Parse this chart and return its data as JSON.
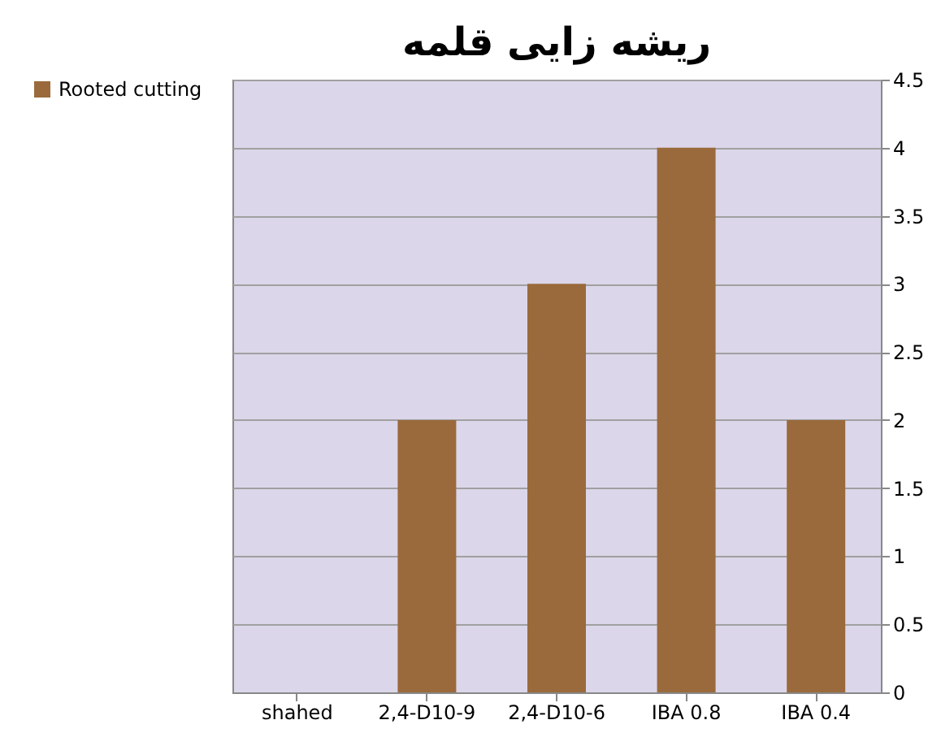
{
  "chart_data": {
    "type": "bar",
    "title": "ریشه زایی قلمه",
    "categories": [
      "shahed",
      "2,4-D10-9",
      "2,4-D10-6",
      "IBA 0.8",
      "IBA 0.4"
    ],
    "series": [
      {
        "name": "Rooted cutting",
        "color": "#9a6a3c",
        "values": [
          0,
          2,
          3,
          4,
          2
        ]
      }
    ],
    "ylim": [
      0,
      4.5
    ],
    "yticks": [
      0,
      0.5,
      1,
      1.5,
      2,
      2.5,
      3,
      3.5,
      4,
      4.5
    ],
    "grid": "y",
    "legend": "left"
  }
}
